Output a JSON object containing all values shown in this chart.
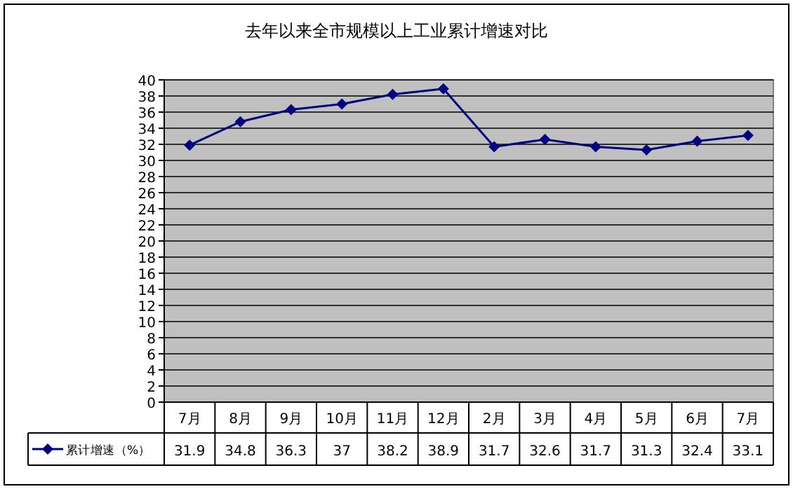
{
  "chart_data": {
    "type": "line",
    "title": "去年以来全市规模以上工业累计增速对比",
    "categories": [
      "7月",
      "8月",
      "9月",
      "10月",
      "11月",
      "12月",
      "2月",
      "3月",
      "4月",
      "5月",
      "6月",
      "7月"
    ],
    "series": [
      {
        "name": "累计增速（%）",
        "color": "#000080",
        "values": [
          31.9,
          34.8,
          36.3,
          37,
          38.2,
          38.9,
          31.7,
          32.6,
          31.7,
          31.3,
          32.4,
          33.1
        ]
      }
    ],
    "ylim": [
      0,
      40
    ],
    "yticks": [
      0,
      2,
      4,
      6,
      8,
      10,
      12,
      14,
      16,
      18,
      20,
      22,
      24,
      26,
      28,
      30,
      32,
      34,
      36,
      38,
      40
    ],
    "grid": "y",
    "marker": "diamond",
    "line_style": "solid",
    "data_labels": true,
    "legend": "bottom"
  }
}
